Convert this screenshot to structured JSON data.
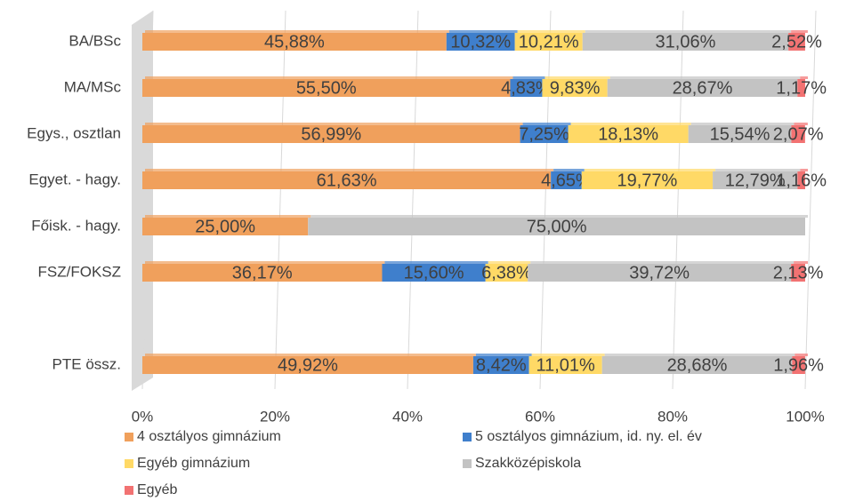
{
  "chart_data": {
    "type": "stacked_hbar",
    "categories": [
      "BA/BSc",
      "MA/MSc",
      "Egys., osztlan",
      "Egyet. - hagy.",
      "Főisk. - hagy.",
      "FSZ/FOKSZ",
      null,
      "PTE össz."
    ],
    "series": [
      {
        "name": "4 osztályos gimnázium",
        "color": "#f0a05c",
        "values": [
          45.88,
          55.5,
          56.99,
          61.63,
          25.0,
          36.17,
          null,
          49.92
        ],
        "value_labels": [
          "45,88%",
          "55,50%",
          "56,99%",
          "61,63%",
          "25,00%",
          "36,17%",
          null,
          "49,92%"
        ]
      },
      {
        "name": "5 osztályos gimnázium, id. ny. el. év",
        "color": "#3f7fcc",
        "values": [
          10.32,
          4.83,
          7.25,
          4.65,
          0,
          15.6,
          null,
          8.42
        ],
        "value_labels": [
          "10,32%",
          "4,83%",
          "7,25%",
          "4,65%",
          null,
          "15,60%",
          null,
          "8,42%"
        ]
      },
      {
        "name": "Egyéb gimnázium",
        "color": "#ffd966",
        "values": [
          10.21,
          9.83,
          18.13,
          19.77,
          0,
          6.38,
          null,
          11.01
        ],
        "value_labels": [
          "10,21%",
          "9,83%",
          "18,13%",
          "19,77%",
          null,
          "6,38%",
          null,
          "11,01%"
        ]
      },
      {
        "name": "Szakközépiskola",
        "color": "#c3c3c3",
        "values": [
          31.06,
          28.67,
          15.54,
          12.79,
          75.0,
          39.72,
          null,
          28.68
        ],
        "value_labels": [
          "31,06%",
          "28,67%",
          "15,54%",
          "12,79%",
          "75,00%",
          "39,72%",
          null,
          "28,68%"
        ]
      },
      {
        "name": "Egyéb",
        "color": "#f27272",
        "values": [
          2.52,
          1.17,
          2.07,
          1.16,
          0,
          2.13,
          null,
          1.96
        ],
        "value_labels": [
          "2,52%",
          "1,17%",
          "2,07%",
          "1,16%",
          null,
          "2,13%",
          null,
          "1,96%"
        ]
      }
    ],
    "xlim": [
      0,
      100
    ],
    "xticks": [
      {
        "value": 0,
        "label": "0%"
      },
      {
        "value": 20,
        "label": "20%"
      },
      {
        "value": 40,
        "label": "40%"
      },
      {
        "value": 60,
        "label": "60%"
      },
      {
        "value": 80,
        "label": "80%"
      },
      {
        "value": 100,
        "label": "100%"
      }
    ],
    "grid": true
  }
}
